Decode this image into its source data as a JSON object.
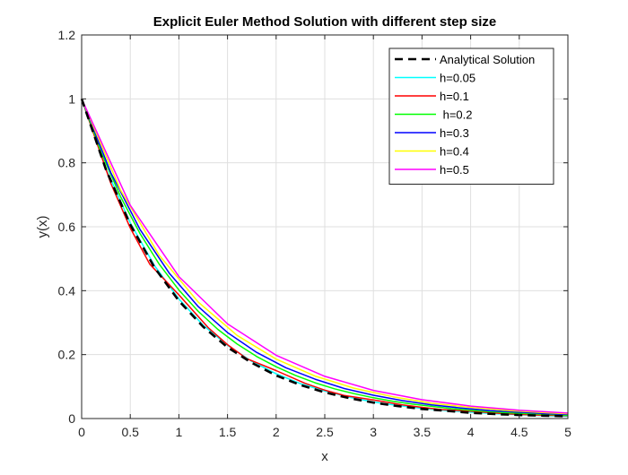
{
  "chart_data": {
    "type": "line",
    "title": "Explicit Euler Method Solution with different step size",
    "xlabel": "x",
    "ylabel": "y(x)",
    "xlim": [
      0,
      5
    ],
    "ylim": [
      0,
      1.2
    ],
    "xticks": [
      "0",
      "0.5",
      "1",
      "1.5",
      "2",
      "2.5",
      "3",
      "3.5",
      "4",
      "4.5",
      "5"
    ],
    "yticks": [
      "0",
      "0.2",
      "0.4",
      "0.6",
      "0.8",
      "1",
      "1.2"
    ],
    "grid": true,
    "legend_position": "top-right",
    "series": [
      {
        "name": "Analytical Solution",
        "color": "#000000",
        "dashed": true,
        "x": [
          0,
          0.25,
          0.5,
          0.75,
          1,
          1.25,
          1.5,
          1.75,
          2,
          2.25,
          2.5,
          2.75,
          3,
          3.25,
          3.5,
          3.75,
          4,
          4.25,
          4.5,
          4.75,
          5
        ],
        "y": [
          1,
          0.779,
          0.607,
          0.472,
          0.368,
          0.287,
          0.223,
          0.174,
          0.135,
          0.105,
          0.082,
          0.064,
          0.05,
          0.039,
          0.03,
          0.024,
          0.018,
          0.014,
          0.011,
          0.009,
          0.007
        ]
      },
      {
        "name": "h=0.05",
        "color": "#00ffff",
        "dashed": false,
        "x": [
          0,
          0.25,
          0.5,
          0.75,
          1,
          1.25,
          1.5,
          1.75,
          2,
          2.25,
          2.5,
          2.75,
          3,
          3.25,
          3.5,
          3.75,
          4,
          4.25,
          4.5,
          4.75,
          5
        ],
        "y": [
          1,
          0.782,
          0.612,
          0.478,
          0.374,
          0.292,
          0.229,
          0.179,
          0.14,
          0.109,
          0.086,
          0.067,
          0.052,
          0.041,
          0.032,
          0.025,
          0.02,
          0.015,
          0.012,
          0.009,
          0.007
        ]
      },
      {
        "name": "h=0.1",
        "color": "#ff0000",
        "dashed": false,
        "x": [
          0,
          0.3,
          0.5,
          0.7,
          1,
          1.3,
          1.5,
          1.7,
          2,
          2.3,
          2.5,
          2.7,
          3,
          3.3,
          3.5,
          3.7,
          4,
          4.3,
          4.5,
          4.7,
          5
        ],
        "y": [
          1,
          0.736,
          0.596,
          0.483,
          0.387,
          0.285,
          0.231,
          0.187,
          0.15,
          0.11,
          0.089,
          0.072,
          0.058,
          0.043,
          0.035,
          0.028,
          0.023,
          0.016,
          0.013,
          0.011,
          0.009
        ]
      },
      {
        "name": " h=0.2",
        "color": "#00ff00",
        "dashed": false,
        "x": [
          0,
          0.2,
          0.4,
          0.6,
          0.8,
          1,
          1.2,
          1.4,
          1.6,
          1.8,
          2,
          2.2,
          2.4,
          2.6,
          2.8,
          3,
          3.2,
          3.4,
          3.6,
          3.8,
          4,
          4.2,
          4.4,
          4.6,
          4.8,
          5
        ],
        "y": [
          1,
          0.833,
          0.694,
          0.579,
          0.482,
          0.402,
          0.335,
          0.279,
          0.233,
          0.194,
          0.162,
          0.135,
          0.112,
          0.093,
          0.078,
          0.065,
          0.054,
          0.045,
          0.038,
          0.031,
          0.026,
          0.022,
          0.018,
          0.015,
          0.013,
          0.01
        ]
      },
      {
        "name": "h=0.3",
        "color": "#0000ff",
        "dashed": false,
        "x": [
          0,
          0.3,
          0.6,
          0.9,
          1.2,
          1.5,
          1.8,
          2.1,
          2.4,
          2.7,
          3,
          3.3,
          3.6,
          3.9,
          4.2,
          4.5,
          4.8,
          5
        ],
        "y": [
          1,
          0.769,
          0.592,
          0.455,
          0.35,
          0.269,
          0.207,
          0.159,
          0.123,
          0.094,
          0.073,
          0.056,
          0.043,
          0.033,
          0.025,
          0.02,
          0.015,
          0.013
        ]
      },
      {
        "name": "h=0.4",
        "color": "#ffff00",
        "dashed": false,
        "x": [
          0,
          0.4,
          0.8,
          1.2,
          1.6,
          2,
          2.4,
          2.8,
          3.2,
          3.6,
          4,
          4.4,
          4.8,
          5
        ],
        "y": [
          1,
          0.714,
          0.51,
          0.364,
          0.26,
          0.186,
          0.133,
          0.095,
          0.068,
          0.048,
          0.035,
          0.025,
          0.018,
          0.015
        ]
      },
      {
        "name": "h=0.5",
        "color": "#ff00ff",
        "dashed": false,
        "x": [
          0,
          0.5,
          1,
          1.5,
          2,
          2.5,
          3,
          3.5,
          4,
          4.5,
          5
        ],
        "y": [
          1,
          0.667,
          0.444,
          0.296,
          0.198,
          0.132,
          0.088,
          0.059,
          0.039,
          0.026,
          0.017
        ]
      }
    ]
  }
}
